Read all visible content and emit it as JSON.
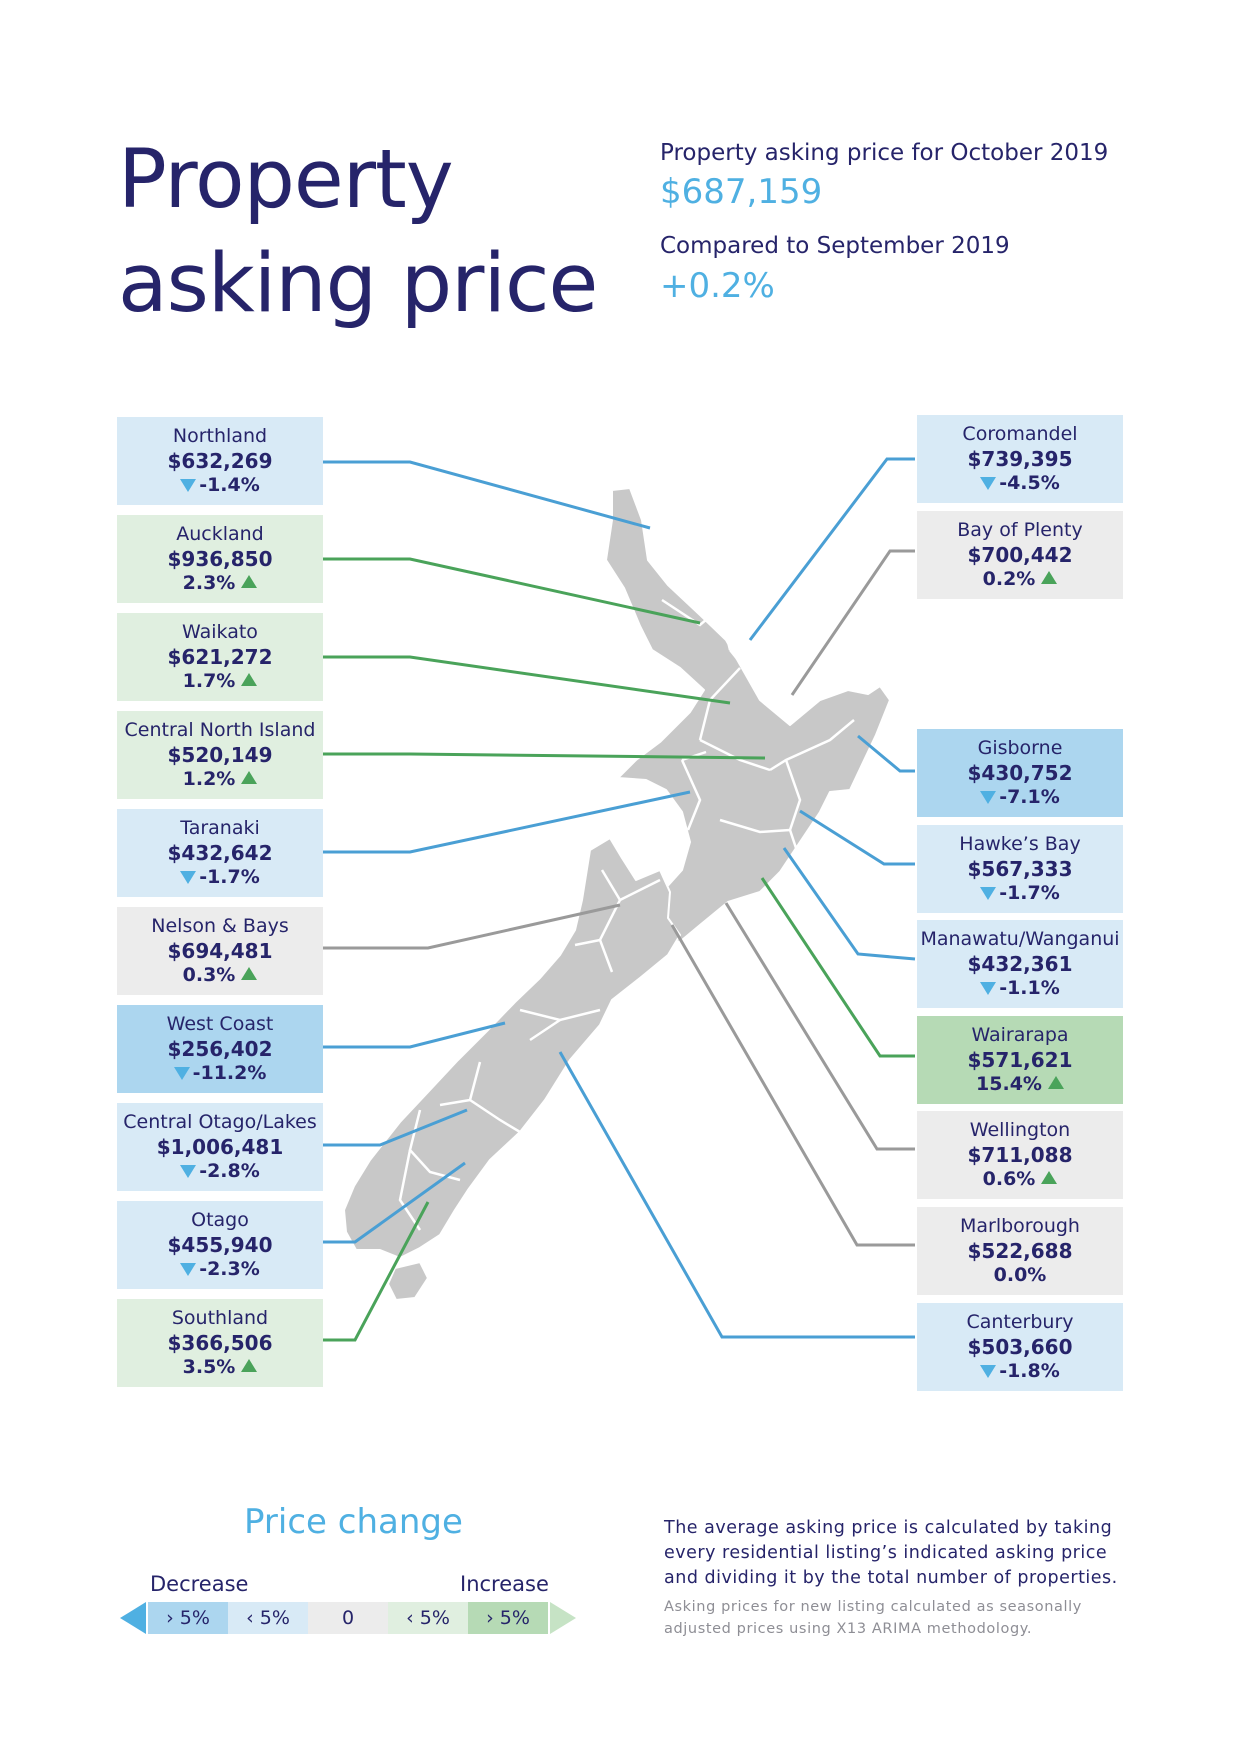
{
  "header": {
    "title_line1": "Property",
    "title_line2": "asking price",
    "current_label": "Property asking price for October 2019",
    "current_value": "$687,159",
    "compare_label": "Compared to September 2019",
    "compare_value": "+0.2%"
  },
  "regions_left": [
    {
      "name": "Northland",
      "price": "$632,269",
      "change": "-1.4%",
      "direction": "down",
      "color": "#d8eaf6"
    },
    {
      "name": "Auckland",
      "price": "$936,850",
      "change": "2.3%",
      "direction": "up",
      "color": "#e0efe0"
    },
    {
      "name": "Waikato",
      "price": "$621,272",
      "change": "1.7%",
      "direction": "up",
      "color": "#e0efe0"
    },
    {
      "name": "Central North Island",
      "price": "$520,149",
      "change": "1.2%",
      "direction": "up",
      "color": "#e0efe0"
    },
    {
      "name": "Taranaki",
      "price": "$432,642",
      "change": "-1.7%",
      "direction": "down",
      "color": "#d8eaf6"
    },
    {
      "name": "Nelson & Bays",
      "price": "$694,481",
      "change": "0.3%",
      "direction": "up",
      "color": "#ececec"
    },
    {
      "name": "West Coast",
      "price": "$256,402",
      "change": "-11.2%",
      "direction": "down",
      "color": "#acd6ef"
    },
    {
      "name": "Central Otago/Lakes",
      "price": "$1,006,481",
      "change": "-2.8%",
      "direction": "down",
      "color": "#d8eaf6"
    },
    {
      "name": "Otago",
      "price": "$455,940",
      "change": "-2.3%",
      "direction": "down",
      "color": "#d8eaf6"
    },
    {
      "name": "Southland",
      "price": "$366,506",
      "change": "3.5%",
      "direction": "up",
      "color": "#e0efe0"
    }
  ],
  "regions_right": [
    {
      "name": "Coromandel",
      "price": "$739,395",
      "change": "-4.5%",
      "direction": "down",
      "color": "#d8eaf6"
    },
    {
      "name": "Bay of Plenty",
      "price": "$700,442",
      "change": "0.2%",
      "direction": "up",
      "color": "#ececec"
    },
    {
      "name": "Gisborne",
      "price": "$430,752",
      "change": "-7.1%",
      "direction": "down",
      "color": "#acd6ef"
    },
    {
      "name": "Hawke’s Bay",
      "price": "$567,333",
      "change": "-1.7%",
      "direction": "down",
      "color": "#d8eaf6"
    },
    {
      "name": "Manawatu/Wanganui",
      "price": "$432,361",
      "change": "-1.1%",
      "direction": "down",
      "color": "#d8eaf6"
    },
    {
      "name": "Wairarapa",
      "price": "$571,621",
      "change": "15.4%",
      "direction": "up",
      "color": "#b6dab5"
    },
    {
      "name": "Wellington",
      "price": "$711,088",
      "change": "0.6%",
      "direction": "up",
      "color": "#ececec"
    },
    {
      "name": "Marlborough",
      "price": "$522,688",
      "change": "0.0%",
      "direction": "none",
      "color": "#ececec"
    },
    {
      "name": "Canterbury",
      "price": "$503,660",
      "change": "-1.8%",
      "direction": "down",
      "color": "#d8eaf6"
    }
  ],
  "legend": {
    "title": "Price change",
    "decrease_label": "Decrease",
    "increase_label": "Increase",
    "segments": [
      "› 5%",
      "‹ 5%",
      "0",
      "‹ 5%",
      "› 5%"
    ],
    "segment_colors": [
      "#acd6ef",
      "#d8eaf6",
      "#ececec",
      "#e0efe0",
      "#b6dab5"
    ]
  },
  "notes": {
    "main": "The average asking price is calculated by taking every residential listing’s indicated asking price and dividing it by the total number of properties.",
    "secondary": "Asking prices for new listing calculated as seasonally adjusted prices using X13 ARIMA methodology."
  },
  "colors": {
    "navy": "#26246a",
    "accent_blue": "#4fb0e2",
    "increase_green": "#4aa35a",
    "line_grey": "#9a9a9a",
    "map_fill": "#c8c8c8"
  }
}
